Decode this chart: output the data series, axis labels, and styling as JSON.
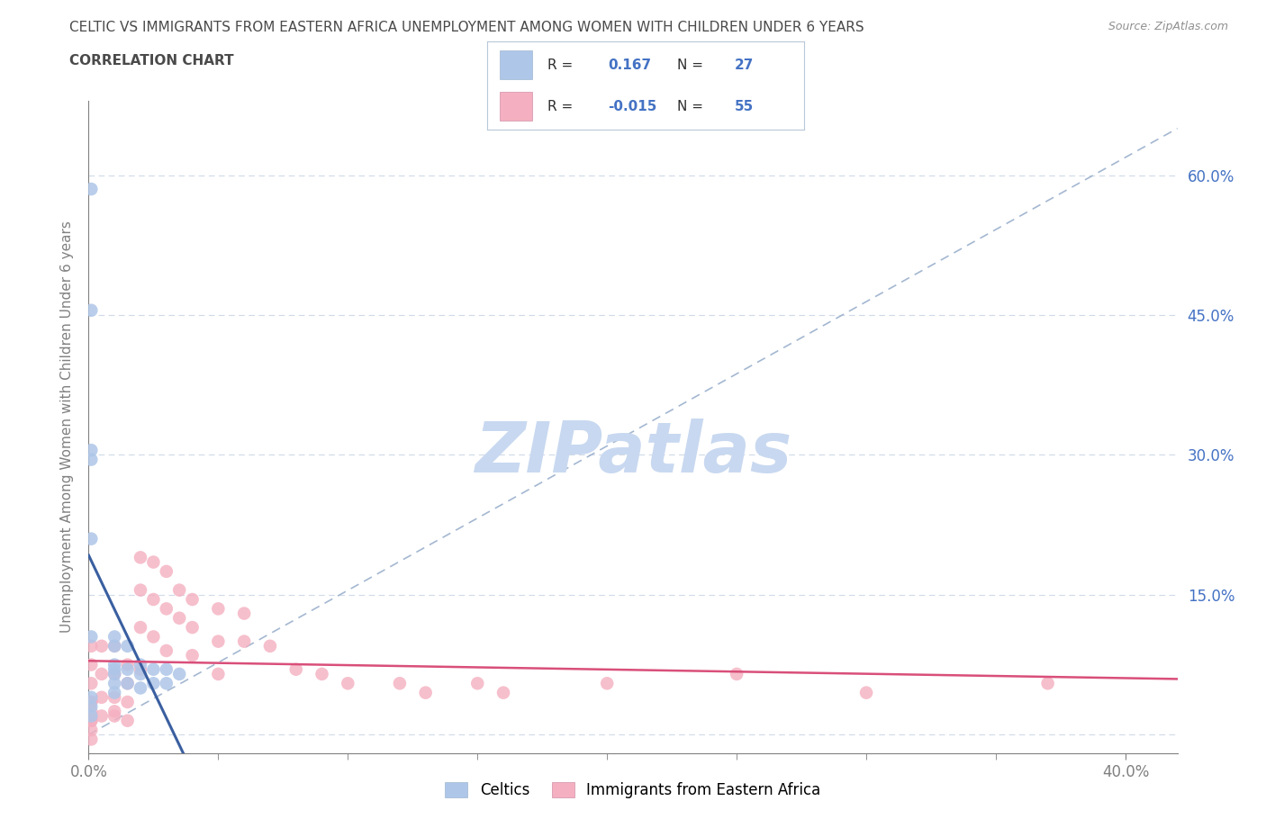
{
  "title_line1": "CELTIC VS IMMIGRANTS FROM EASTERN AFRICA UNEMPLOYMENT AMONG WOMEN WITH CHILDREN UNDER 6 YEARS",
  "title_line2": "CORRELATION CHART",
  "source": "Source: ZipAtlas.com",
  "ylabel": "Unemployment Among Women with Children Under 6 years",
  "xlim": [
    0.0,
    0.42
  ],
  "ylim": [
    -0.02,
    0.68
  ],
  "ytick_positions": [
    0.0,
    0.15,
    0.3,
    0.45,
    0.6
  ],
  "yticklabels": [
    "",
    "15.0%",
    "30.0%",
    "45.0%",
    "60.0%"
  ],
  "celtics_color": "#aec6e8",
  "celtics_line_color": "#3a5fa0",
  "eastern_color": "#f4afc0",
  "eastern_line_color": "#d94f7a",
  "diag_color": "#9ab0cc",
  "background_color": "#ffffff",
  "grid_color": "#d0dae8",
  "title_color": "#4a4a4a",
  "axis_color": "#808080",
  "tick_color": "#4472c4",
  "watermark": "ZIPatlas",
  "watermark_color": "#c8d8f0",
  "legend_R1": "0.167",
  "legend_N1": "27",
  "legend_R2": "-0.015",
  "legend_N2": "55",
  "celtics_scatter_x": [
    0.001,
    0.001,
    0.001,
    0.001,
    0.001,
    0.001,
    0.01,
    0.01,
    0.01,
    0.01,
    0.01,
    0.01,
    0.01,
    0.015,
    0.015,
    0.015,
    0.02,
    0.02,
    0.02,
    0.025,
    0.025,
    0.03,
    0.03,
    0.035,
    0.001,
    0.001,
    0.001
  ],
  "celtics_scatter_y": [
    0.585,
    0.455,
    0.305,
    0.295,
    0.21,
    0.105,
    0.105,
    0.095,
    0.075,
    0.07,
    0.065,
    0.055,
    0.045,
    0.095,
    0.07,
    0.055,
    0.075,
    0.065,
    0.05,
    0.07,
    0.055,
    0.07,
    0.055,
    0.065,
    0.04,
    0.03,
    0.02
  ],
  "eastern_scatter_x": [
    0.001,
    0.001,
    0.001,
    0.001,
    0.001,
    0.005,
    0.005,
    0.005,
    0.005,
    0.01,
    0.01,
    0.01,
    0.01,
    0.015,
    0.015,
    0.015,
    0.02,
    0.02,
    0.02,
    0.02,
    0.025,
    0.025,
    0.025,
    0.03,
    0.03,
    0.03,
    0.035,
    0.035,
    0.04,
    0.04,
    0.04,
    0.05,
    0.05,
    0.05,
    0.06,
    0.06,
    0.07,
    0.08,
    0.09,
    0.1,
    0.12,
    0.13,
    0.15,
    0.16,
    0.2,
    0.25,
    0.3,
    0.37,
    0.001,
    0.001,
    0.001,
    0.001,
    0.001,
    0.01,
    0.015
  ],
  "eastern_scatter_y": [
    0.095,
    0.075,
    0.055,
    0.035,
    0.015,
    0.095,
    0.065,
    0.04,
    0.02,
    0.095,
    0.065,
    0.04,
    0.02,
    0.075,
    0.055,
    0.035,
    0.19,
    0.155,
    0.115,
    0.07,
    0.185,
    0.145,
    0.105,
    0.175,
    0.135,
    0.09,
    0.155,
    0.125,
    0.145,
    0.115,
    0.085,
    0.135,
    0.1,
    0.065,
    0.13,
    0.1,
    0.095,
    0.07,
    0.065,
    0.055,
    0.055,
    0.045,
    0.055,
    0.045,
    0.055,
    0.065,
    0.045,
    0.055,
    0.035,
    0.025,
    0.015,
    0.005,
    -0.005,
    0.025,
    0.015
  ]
}
